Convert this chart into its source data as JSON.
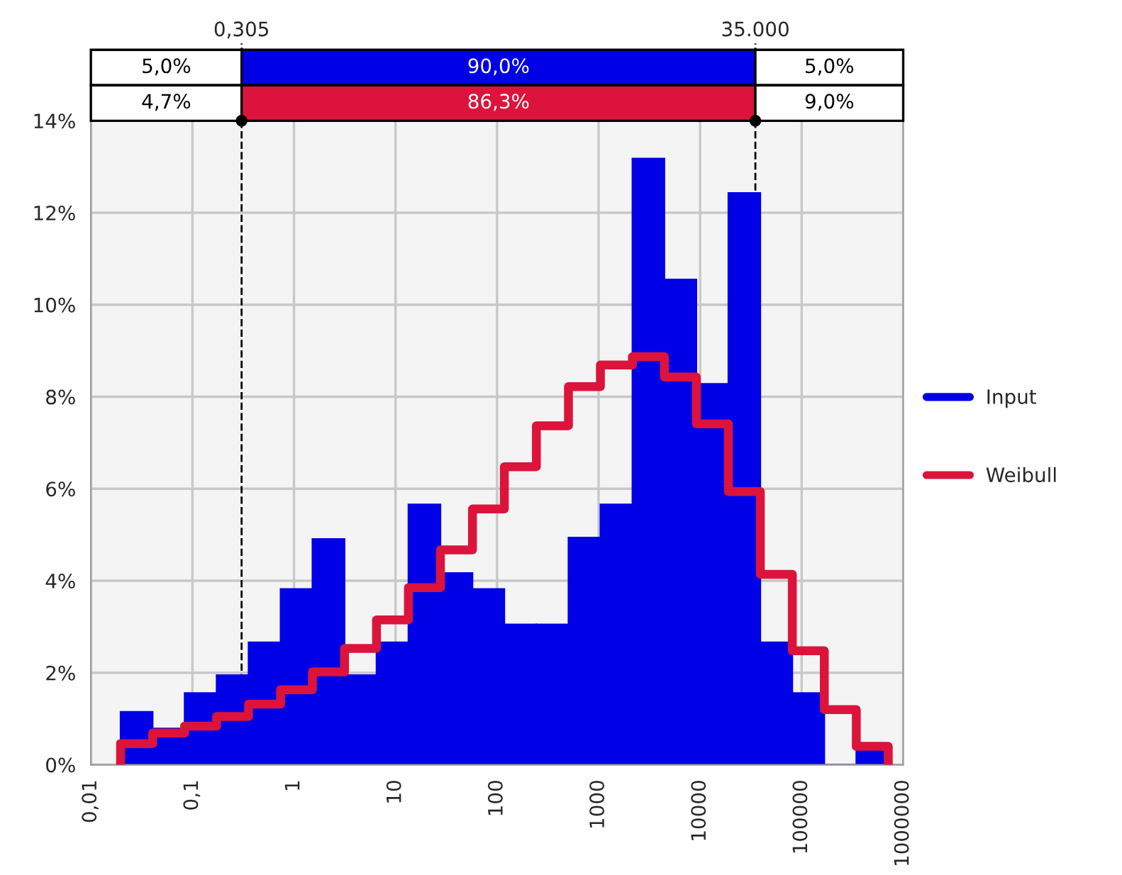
{
  "chart_data": {
    "type": "histogram",
    "bins": [
      0.0196,
      0.0406,
      0.0838,
      0.173,
      0.357,
      0.738,
      1.52,
      3.15,
      6.5,
      13.4,
      27.7,
      57.3,
      118,
      244,
      505,
      1042,
      2153,
      4446,
      9183,
      18967,
      39174,
      80910,
      167109,
      345144,
      712853
    ],
    "series": [
      {
        "name": "Input",
        "color": "#0000e6",
        "values": [
          1.15,
          0.79,
          1.56,
          1.95,
          2.66,
          3.82,
          4.91,
          1.95,
          2.66,
          5.66,
          4.17,
          3.82,
          3.05,
          3.05,
          4.94,
          5.66,
          13.18,
          10.55,
          8.28,
          12.43,
          2.66,
          1.56,
          0,
          0.3
        ]
      },
      {
        "name": "Weibull",
        "type": "step",
        "color": "#dc143c",
        "x": [
          0.0196,
          0.0406,
          0.0838,
          0.173,
          0.357,
          0.738,
          1.52,
          3.15,
          6.5,
          13.4,
          27.7,
          57.3,
          118,
          244,
          505,
          1042,
          2153,
          4446,
          9183,
          18967,
          39174,
          80910,
          167109,
          345144
        ],
        "values": [
          0.46,
          0.69,
          0.84,
          1.05,
          1.32,
          1.63,
          2.02,
          2.53,
          3.15,
          3.85,
          4.67,
          5.56,
          6.48,
          7.37,
          8.22,
          8.69,
          8.87,
          8.43,
          7.41,
          5.94,
          4.14,
          2.48,
          1.2,
          0.4
        ]
      }
    ],
    "log": "x",
    "xlim": [
      0.01,
      1000000
    ],
    "xticks": [
      {
        "value": 0.01,
        "label": "0,01"
      },
      {
        "value": 0.1,
        "label": "0,1"
      },
      1,
      10,
      100,
      1000,
      10000,
      100000,
      1000000
    ],
    "ylim": [
      0,
      14
    ],
    "yticks": [
      {
        "value": 0,
        "label": "0%"
      },
      {
        "value": 2,
        "label": "2%"
      },
      {
        "value": 4,
        "label": "4%"
      },
      {
        "value": 6,
        "label": "6%"
      },
      {
        "value": 8,
        "label": "8%"
      },
      {
        "value": 10,
        "label": "10%"
      },
      {
        "value": 12,
        "label": "12%"
      },
      {
        "value": 14,
        "label": "14%"
      }
    ],
    "ref_lines": [
      {
        "axis": "x",
        "value": 0.305,
        "label": "0,305",
        "color": "#000000",
        "line_style": "dashed"
      },
      {
        "axis": "x",
        "value": 35000,
        "label": "35.000",
        "color": "#000000",
        "line_style": "dashed"
      }
    ],
    "annotations": [
      "5,0%",
      "90,0%",
      "5,0%",
      "4,7%",
      "86,3%",
      "9,0%"
    ],
    "grid": true,
    "legend": "right"
  }
}
